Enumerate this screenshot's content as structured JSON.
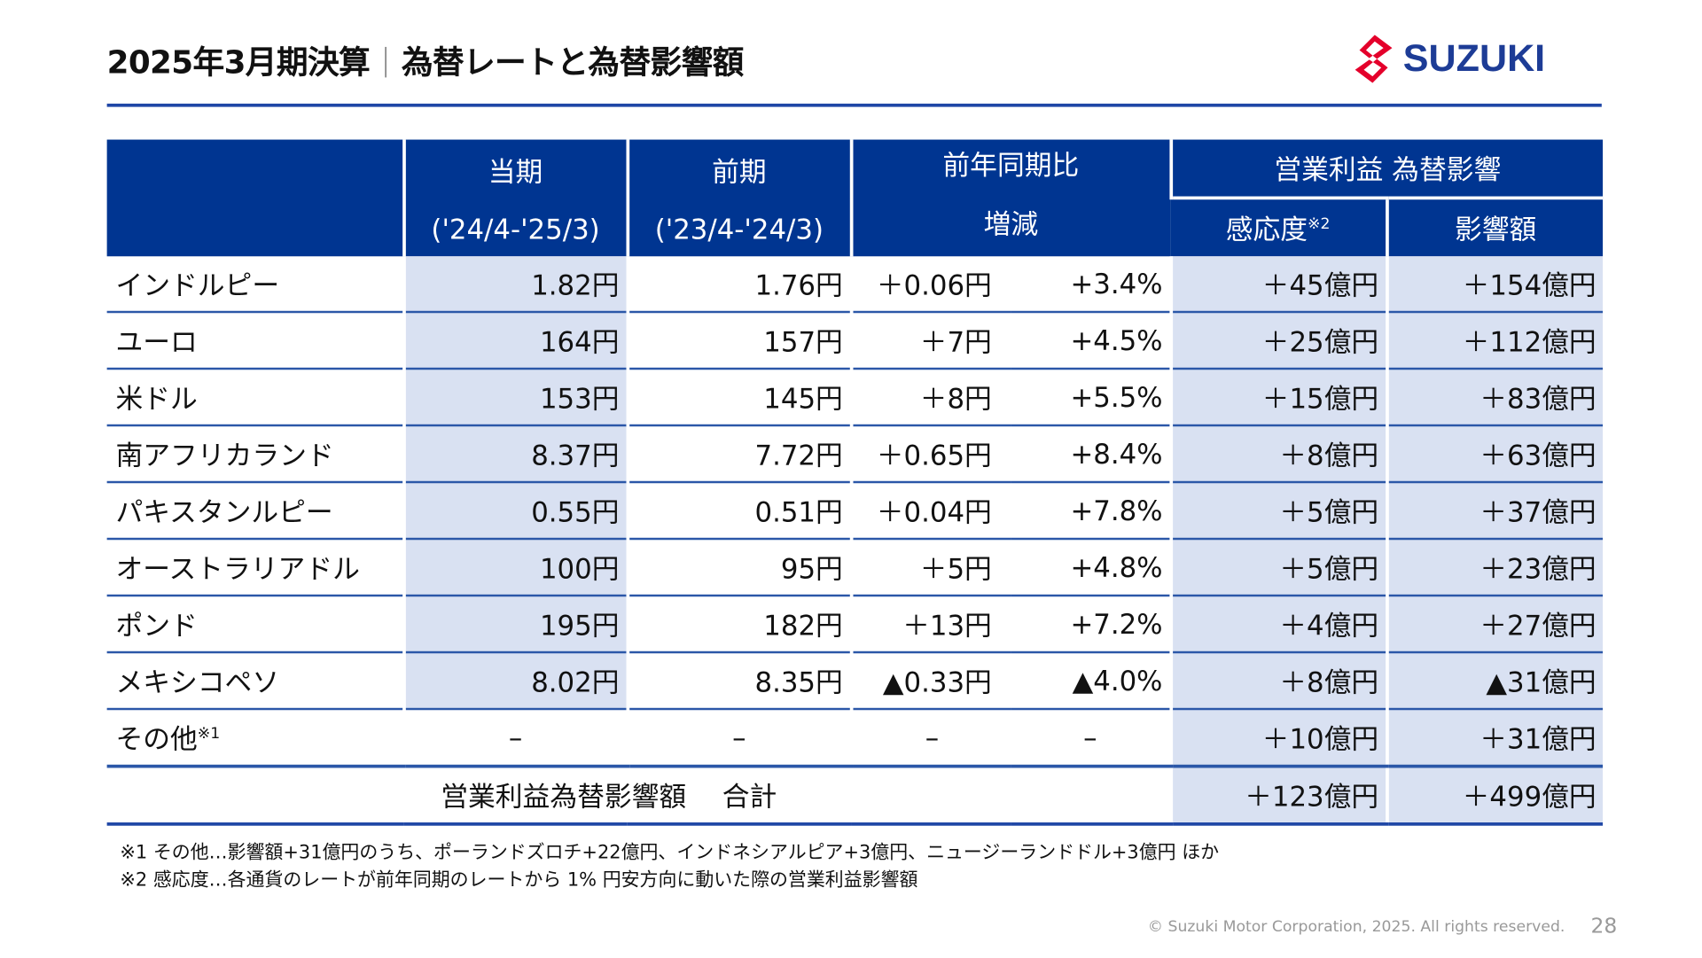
{
  "title": {
    "part1": "2025年3月期決算",
    "part2": "為替レートと為替影響額"
  },
  "logo": {
    "text": "SUZUKI",
    "brand_red": "#e4002b",
    "brand_blue": "#1d3c96"
  },
  "colors": {
    "header": "#003591",
    "highlight": "#d9e1f2",
    "rule": "#1f47a6"
  },
  "table": {
    "headers": {
      "current": "当期",
      "current_period": "('24/4-'25/3)",
      "previous": "前期",
      "previous_period": "('23/4-'24/3)",
      "yoy": "前年同期比",
      "yoy_sub": "増減",
      "impact_group": "営業利益 為替影響",
      "sensitivity": "感応度",
      "sensitivity_note": "※2",
      "impact": "影響額"
    },
    "rows": [
      {
        "currency": "インドルピー",
        "current": "1.82円",
        "previous": "1.76円",
        "change": "＋0.06円",
        "change_pct": "+3.4%",
        "sensitivity": "＋45億円",
        "impact": "＋154億円"
      },
      {
        "currency": "ユーロ",
        "current": "164円",
        "previous": "157円",
        "change": "＋7円",
        "change_pct": "+4.5%",
        "sensitivity": "＋25億円",
        "impact": "＋112億円"
      },
      {
        "currency": "米ドル",
        "current": "153円",
        "previous": "145円",
        "change": "＋8円",
        "change_pct": "+5.5%",
        "sensitivity": "＋15億円",
        "impact": "＋83億円"
      },
      {
        "currency": "南アフリカランド",
        "current": "8.37円",
        "previous": "7.72円",
        "change": "＋0.65円",
        "change_pct": "+8.4%",
        "sensitivity": "＋8億円",
        "impact": "＋63億円"
      },
      {
        "currency": "パキスタンルピー",
        "current": "0.55円",
        "previous": "0.51円",
        "change": "＋0.04円",
        "change_pct": "+7.8%",
        "sensitivity": "＋5億円",
        "impact": "＋37億円"
      },
      {
        "currency": "オーストラリアドル",
        "current": "100円",
        "previous": "95円",
        "change": "＋5円",
        "change_pct": "+4.8%",
        "sensitivity": "＋5億円",
        "impact": "＋23億円"
      },
      {
        "currency": "ポンド",
        "current": "195円",
        "previous": "182円",
        "change": "＋13円",
        "change_pct": "+7.2%",
        "sensitivity": "＋4億円",
        "impact": "＋27億円"
      },
      {
        "currency": "メキシコペソ",
        "current": "8.02円",
        "previous": "8.35円",
        "change": "▲0.33円",
        "change_pct": "▲4.0%",
        "sensitivity": "＋8億円",
        "impact": "▲31億円"
      }
    ],
    "other": {
      "currency": "その他",
      "note": "※1",
      "current": "–",
      "previous": "–",
      "change": "–",
      "change_pct": "–",
      "sensitivity": "＋10億円",
      "impact": "＋31億円"
    },
    "total": {
      "label": "営業利益為替影響額　 合計",
      "sensitivity": "＋123億円",
      "impact": "＋499億円"
    }
  },
  "notes": [
    "※1 その他…影響額+31億円のうち、ポーランドズロチ+22億円、インドネシアルピア+3億円、ニュージーランドドル+3億円 ほか",
    "※2 感応度…各通貨のレートが前年同期のレートから 1% 円安方向に動いた際の営業利益影響額"
  ],
  "footer": {
    "copyright": "© Suzuki Motor Corporation, 2025. All rights reserved.",
    "page": "28"
  }
}
